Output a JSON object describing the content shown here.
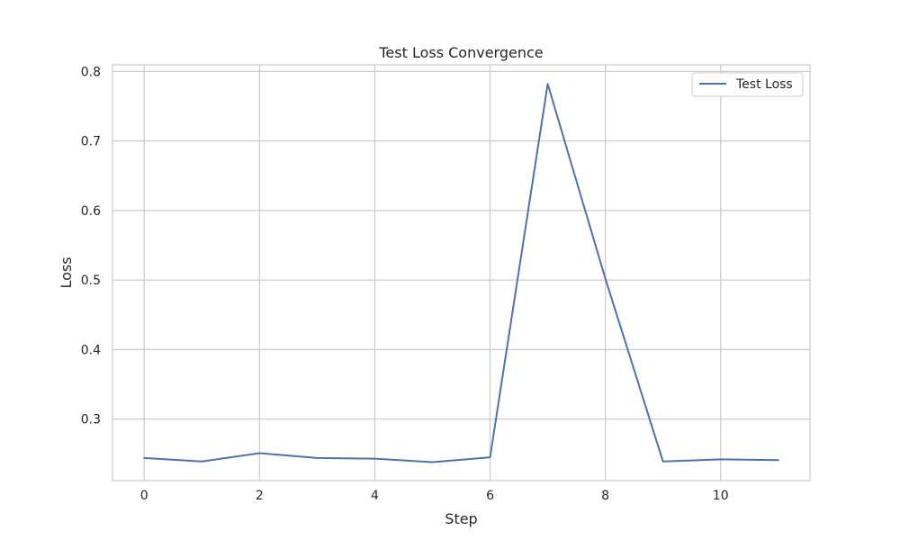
{
  "chart_data": {
    "type": "line",
    "title": "Test Loss Convergence",
    "xlabel": "Step",
    "ylabel": "Loss",
    "xlim": [
      -0.55,
      11.55
    ],
    "ylim": [
      0.2115,
      0.8095
    ],
    "xticks": [
      0,
      2,
      4,
      6,
      8,
      10
    ],
    "yticks": [
      0.3,
      0.4,
      0.5,
      0.6,
      0.7,
      0.8
    ],
    "xtick_labels": [
      "0",
      "2",
      "4",
      "6",
      "8",
      "10"
    ],
    "ytick_labels": [
      "0.3",
      "0.4",
      "0.5",
      "0.6",
      "0.7",
      "0.8"
    ],
    "grid": true,
    "legend_position": "top-right",
    "series": [
      {
        "name": "Test Loss",
        "color": "#4c72b0",
        "x": [
          0,
          1,
          2,
          3,
          4,
          5,
          6,
          7,
          8,
          9,
          10,
          11
        ],
        "y": [
          0.244,
          0.239,
          0.251,
          0.244,
          0.243,
          0.238,
          0.245,
          0.782,
          0.502,
          0.239,
          0.242,
          0.241
        ]
      }
    ]
  }
}
